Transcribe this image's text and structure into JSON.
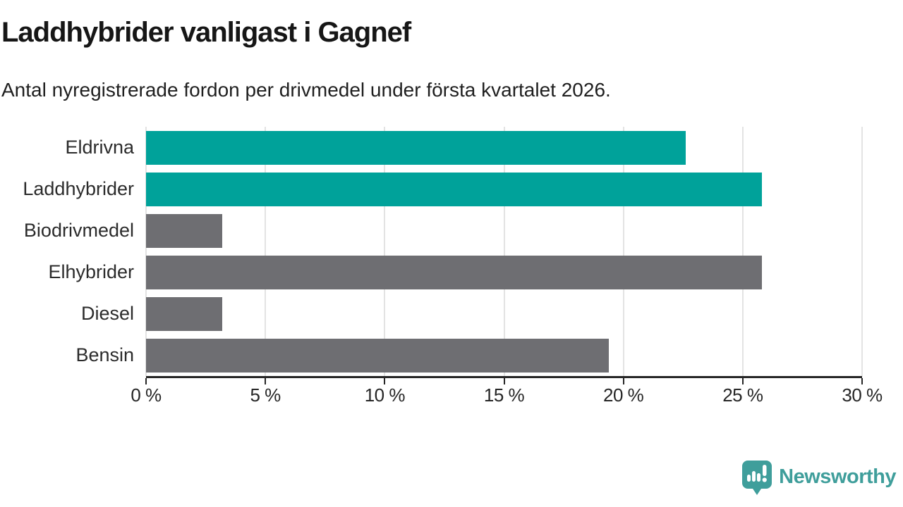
{
  "page": {
    "background": "#ffffff"
  },
  "chart_data": {
    "type": "bar",
    "orientation": "horizontal",
    "title": "Laddhybrider vanligast i Gagnef",
    "subtitle": "Antal nyregistrerade fordon per drivmedel under första kvartalet 2026.",
    "categories": [
      "Eldrivna",
      "Laddhybrider",
      "Biodrivmedel",
      "Elhybrider",
      "Diesel",
      "Bensin"
    ],
    "values": [
      22.6,
      25.8,
      3.2,
      25.8,
      3.2,
      19.4
    ],
    "unit": "%",
    "xlabel": "",
    "ylabel": "",
    "xlim": [
      0,
      30
    ],
    "x_ticks": [
      0,
      5,
      10,
      15,
      20,
      25,
      30
    ],
    "x_tick_labels": [
      "0 %",
      "5 %",
      "10 %",
      "15 %",
      "20 %",
      "25 %",
      "30 %"
    ],
    "bar_colors": [
      "#00a29a",
      "#00a29a",
      "#6e6e72",
      "#6e6e72",
      "#6e6e72",
      "#6e6e72"
    ],
    "highlight_color": "#00a29a",
    "default_color": "#6e6e72",
    "gridline_color": "#e3e3e3",
    "axis_color": "#262626",
    "grid": true,
    "legend": false
  },
  "footer": {
    "brand": "Newsworthy",
    "brand_color": "#3f9e9b",
    "logo_icon": "speech-bubble-bar-chart-icon"
  }
}
